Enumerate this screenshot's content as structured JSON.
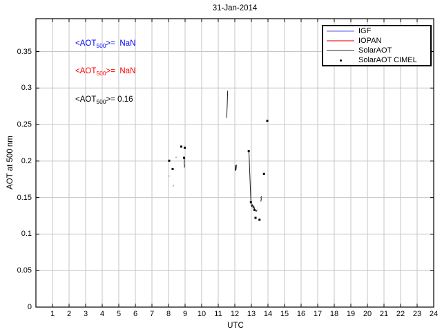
{
  "title": "31-Jan-2014",
  "axes": {
    "xlabel": "UTC",
    "ylabel": "AOT at 500 nm",
    "xlim": [
      0,
      24
    ],
    "ylim": [
      0,
      0.395
    ],
    "x_ticks": [
      1,
      2,
      3,
      4,
      5,
      6,
      7,
      8,
      9,
      10,
      11,
      12,
      13,
      14,
      15,
      16,
      17,
      18,
      19,
      20,
      21,
      22,
      23,
      24
    ],
    "y_ticks": [
      {
        "value": 0,
        "label": "0"
      },
      {
        "value": 0.05,
        "label": "0.05"
      },
      {
        "value": 0.1,
        "label": "0.1"
      },
      {
        "value": 0.15,
        "label": "0.15"
      },
      {
        "value": 0.2,
        "label": "0.2"
      },
      {
        "value": 0.25,
        "label": "0.25"
      },
      {
        "value": 0.3,
        "label": "0.3"
      },
      {
        "value": 0.35,
        "label": "0.35"
      }
    ],
    "grid": true,
    "grid_color": "#c6c6c6"
  },
  "annotations": [
    {
      "pre": "<AOT",
      "sub": "500",
      "post": ">=  NaN",
      "color": "#0000ff"
    },
    {
      "pre": "<AOT",
      "sub": "500",
      "post": ">=  NaN",
      "color": "#ff0000"
    },
    {
      "pre": "<AOT",
      "sub": "500",
      "post": ">= 0.16",
      "color": "#000000"
    }
  ],
  "legend": {
    "position": "top-right",
    "items": [
      {
        "label": "IGF",
        "swatch": "line",
        "color": "#aaaaee"
      },
      {
        "label": "IOPAN",
        "swatch": "line",
        "color": "#f07878"
      },
      {
        "label": "SolarAOT",
        "swatch": "line",
        "color": "#969696"
      },
      {
        "label": "SolarAOT CIMEL",
        "swatch": "marker",
        "color": "#000000"
      }
    ]
  },
  "chart_data": {
    "type": "line",
    "title": "31-Jan-2014",
    "xlabel": "UTC",
    "ylabel": "AOT at 500 nm",
    "xlim": [
      0,
      24
    ],
    "ylim": [
      0,
      0.395
    ],
    "legend_position": "top-right",
    "series": [
      {
        "name": "IGF",
        "type": "line",
        "color": "#aaaaee",
        "segments": []
      },
      {
        "name": "IOPAN",
        "type": "line",
        "color": "#f07878",
        "segments": []
      },
      {
        "name": "SolarAOT",
        "type": "line",
        "color": "#1a1a1a",
        "segments": [
          [
            [
              8.93,
              0.2045
            ],
            [
              8.96,
              0.2
            ],
            [
              8.94,
              0.197
            ],
            [
              8.97,
              0.1935
            ],
            [
              8.95,
              0.191
            ]
          ],
          [
            [
              11.51,
              0.259
            ],
            [
              11.54,
              0.276
            ],
            [
              11.57,
              0.2965
            ]
          ],
          [
            [
              12.02,
              0.1865
            ],
            [
              12.05,
              0.1945
            ],
            [
              12.07,
              0.1875
            ],
            [
              12.1,
              0.195
            ]
          ],
          [
            [
              12.84,
              0.214
            ],
            [
              12.86,
              0.209
            ],
            [
              12.97,
              0.1435
            ],
            [
              13.02,
              0.1373
            ],
            [
              13.06,
              0.1407
            ],
            [
              13.1,
              0.1354
            ],
            [
              13.15,
              0.1383
            ],
            [
              13.21,
              0.1326
            ],
            [
              13.29,
              0.1312
            ],
            [
              13.35,
              0.1331
            ]
          ],
          [
            [
              13.57,
              0.1445
            ],
            [
              13.6,
              0.148
            ],
            [
              13.58,
              0.15
            ],
            [
              13.61,
              0.152
            ]
          ]
        ]
      },
      {
        "name": "SolarAOT CIMEL",
        "type": "scatter",
        "color": "#000000",
        "points": [
          [
            8.04,
            0.2005
          ],
          [
            8.25,
            0.1891
          ],
          [
            8.77,
            0.2198
          ],
          [
            8.98,
            0.2183
          ],
          [
            8.94,
            0.2045
          ],
          [
            12.84,
            0.2135
          ],
          [
            12.97,
            0.1435
          ],
          [
            13.19,
            0.133
          ],
          [
            13.25,
            0.1222
          ],
          [
            13.49,
            0.1197
          ],
          [
            13.76,
            0.1825
          ],
          [
            13.96,
            0.2551
          ]
        ]
      }
    ],
    "faint_marks": {
      "color": "#b4b4b4",
      "points": [
        [
          8.46,
          0.2051
        ],
        [
          8.02,
          0.1795
        ],
        [
          8.29,
          0.1662
        ]
      ]
    },
    "mean_aot500": {
      "IGF": "NaN",
      "IOPAN": "NaN",
      "SolarAOT": "0.16"
    }
  }
}
